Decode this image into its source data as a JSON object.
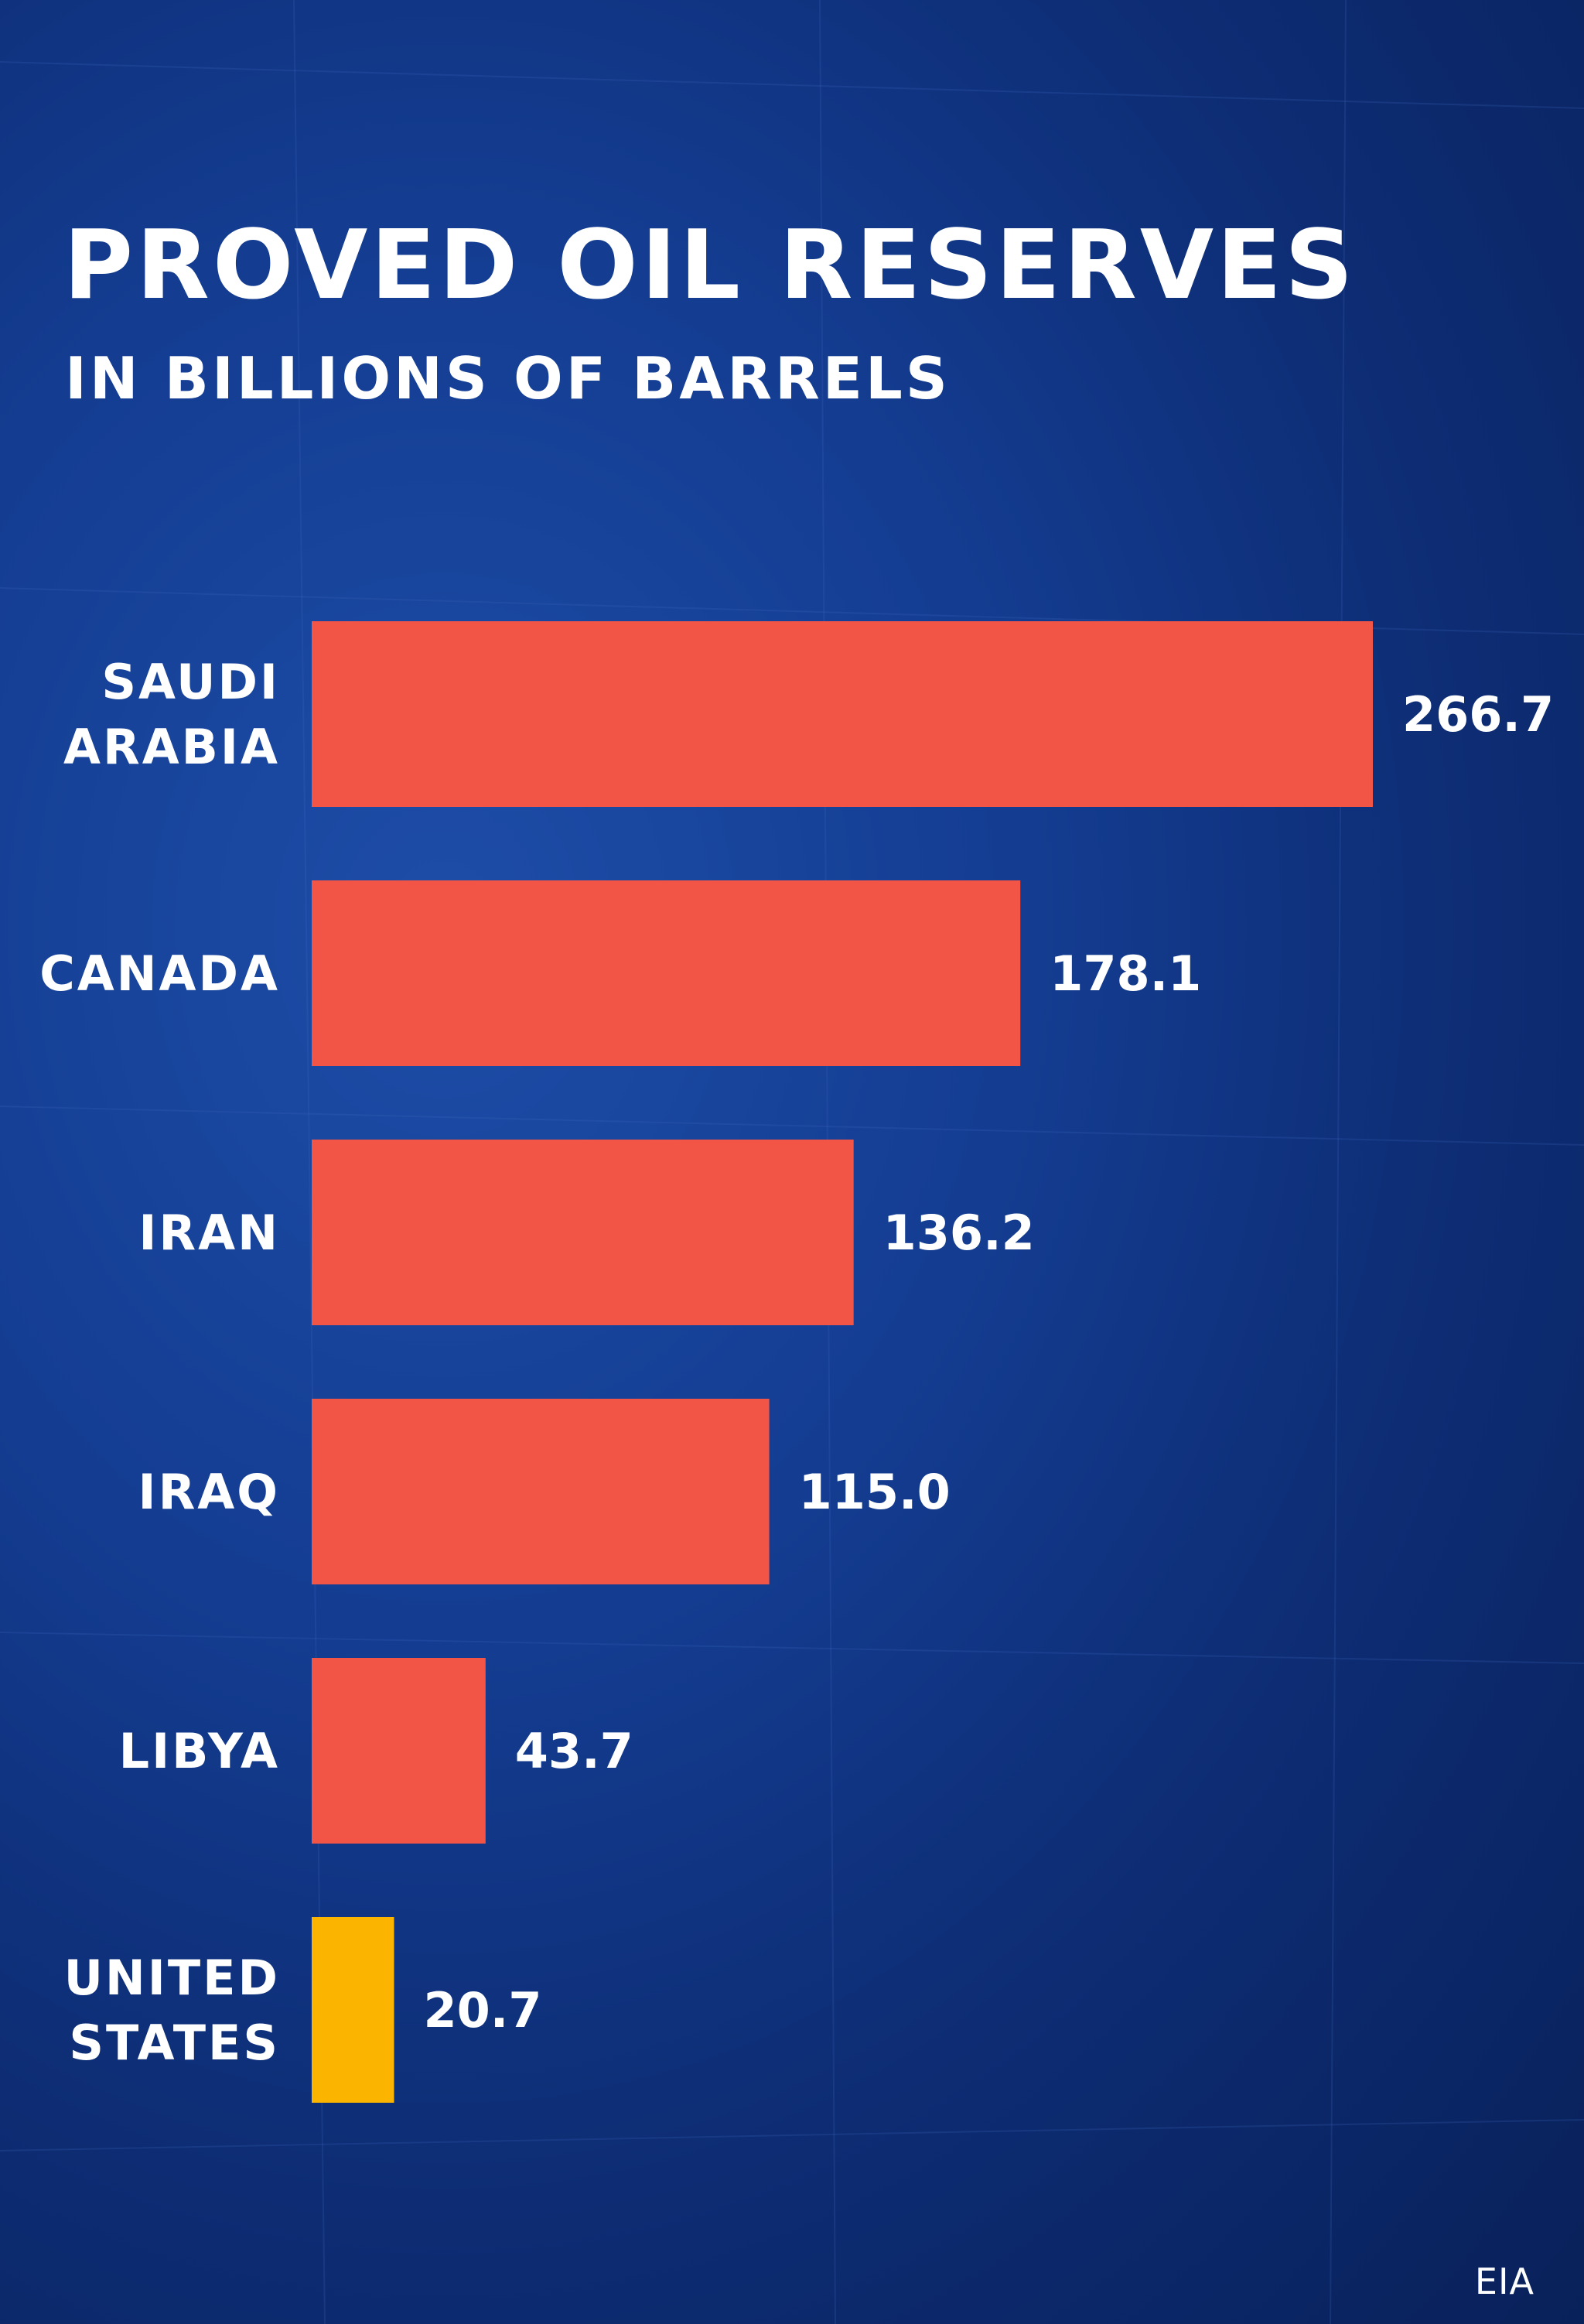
{
  "chart_data": {
    "type": "bar",
    "orientation": "horizontal",
    "title": "PROVED OIL RESERVES",
    "subtitle": "IN BILLIONS OF BARRELS",
    "categories": [
      [
        "SAUDI",
        "ARABIA"
      ],
      [
        "CANADA"
      ],
      [
        "IRAN"
      ],
      [
        "IRAQ"
      ],
      [
        "LIBYA"
      ],
      [
        "UNITED",
        "STATES"
      ]
    ],
    "values": [
      266.7,
      178.1,
      136.2,
      115.0,
      43.7,
      20.7
    ],
    "value_labels": [
      "266.7",
      "178.1",
      "136.2",
      "115.0",
      "43.7",
      "20.7"
    ],
    "bar_colors": [
      "#f25546",
      "#f25546",
      "#f25546",
      "#f25546",
      "#f25546",
      "#fbb400"
    ],
    "xlim": [
      0,
      266.7
    ],
    "source": "EIA"
  },
  "colors": {
    "background": "#133a8c",
    "bar": "#f25546",
    "highlight_bar": "#fbb400",
    "text": "#ffffff"
  }
}
